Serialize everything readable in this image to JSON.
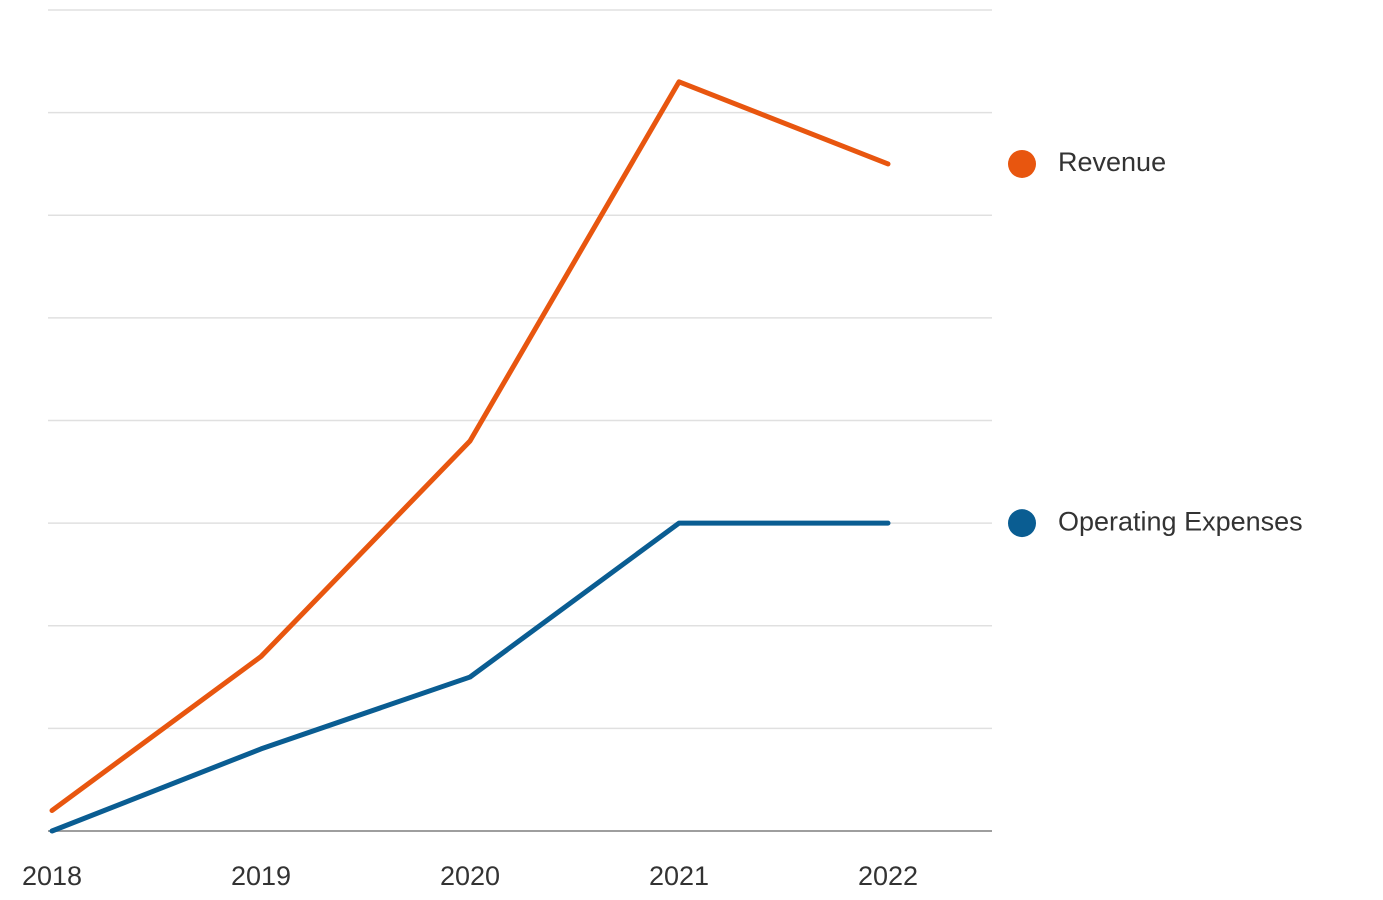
{
  "chart_data": {
    "type": "line",
    "categories": [
      "2018",
      "2019",
      "2020",
      "2021",
      "2022"
    ],
    "series": [
      {
        "name": "Revenue",
        "color": "#e8560f",
        "values": [
          0.2,
          1.7,
          3.8,
          7.3,
          6.5
        ]
      },
      {
        "name": "Operating Expenses",
        "color": "#0a5d92",
        "values": [
          0.0,
          0.8,
          1.5,
          3.0,
          3.0
        ]
      }
    ],
    "ylim": [
      0,
      8
    ],
    "yticks": [
      0,
      1,
      2,
      3,
      4,
      5,
      6,
      7,
      8
    ],
    "grid": true,
    "legend": "right"
  }
}
